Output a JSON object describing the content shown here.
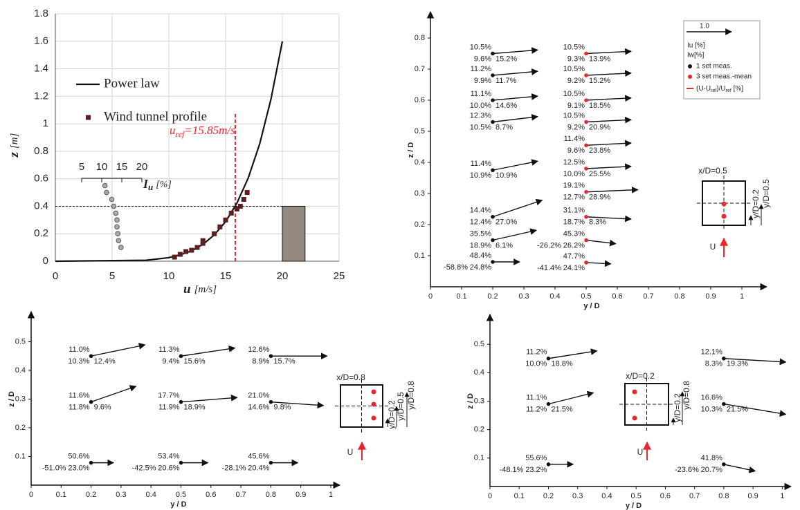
{
  "chart_data": [
    {
      "type": "line",
      "xlabel": {
        "symbol": "u",
        "unit": "[m/s]"
      },
      "ylabel": {
        "symbol": "z",
        "unit": "[m]"
      },
      "xlim": [
        0,
        25
      ],
      "xticks": [
        0,
        5,
        10,
        15,
        20,
        25
      ],
      "ylim": [
        0,
        1.8
      ],
      "yticks": [
        0,
        0.2,
        0.4,
        0.6,
        0.8,
        1,
        1.2,
        1.4,
        1.6,
        1.8
      ],
      "grid": true,
      "series": [
        {
          "name": "Power law",
          "color": "#111111",
          "kind": "line",
          "x": [
            0,
            8,
            10,
            11,
            12,
            13,
            14,
            15,
            16,
            17,
            18,
            19,
            20
          ],
          "y": [
            0,
            0.007,
            0.026,
            0.046,
            0.076,
            0.123,
            0.191,
            0.288,
            0.423,
            0.607,
            0.853,
            1.18,
            1.6
          ]
        },
        {
          "name": "Wind tunnel profile",
          "color": "#5b1f1f",
          "kind": "scatter",
          "x": [
            10.5,
            11,
            11.5,
            12,
            12.5,
            13,
            13,
            14,
            14.5,
            15,
            15.5,
            16,
            16.3,
            16.6,
            16.9
          ],
          "y": [
            0.03,
            0.05,
            0.07,
            0.08,
            0.1,
            0.15,
            0.13,
            0.2,
            0.25,
            0.3,
            0.35,
            0.38,
            0.4,
            0.45,
            0.5
          ]
        }
      ],
      "iu_profile": {
        "label": {
          "symbol": "I",
          "sub": "u",
          "unit": "[%]"
        },
        "ticks": [
          5,
          10,
          15,
          20
        ],
        "color": "#aaaaaa",
        "x": [
          10.8,
          11.2,
          12.5,
          13,
          13.5,
          13.8,
          13.8,
          14,
          14.2,
          14.8
        ],
        "y": [
          0.55,
          0.5,
          0.45,
          0.4,
          0.35,
          0.3,
          0.25,
          0.2,
          0.15,
          0.1
        ]
      },
      "reference": {
        "symbol": "u",
        "sub": "ref",
        "text": "=15.85m/s",
        "value": 15.85,
        "height": 0.4,
        "color": "#e8262b"
      },
      "building": {
        "x": [
          20,
          22
        ],
        "height": 0.4,
        "color": "#948a80"
      }
    },
    {
      "type": "vector",
      "xlabel": "y / D",
      "ylabel": "z / D",
      "xlim": [
        0,
        1.08
      ],
      "xticks": [
        0,
        0.1,
        0.2,
        0.3,
        0.4,
        0.5,
        0.6,
        0.7,
        0.8,
        0.9,
        1
      ],
      "ylim": [
        0,
        0.88
      ],
      "yticks": [
        0.1,
        0.2,
        0.3,
        0.4,
        0.5,
        0.6,
        0.7,
        0.8
      ],
      "colors": {
        "iu": "#222222",
        "iw": "#e8262b",
        "sets": [
          "#111111",
          "#e8262b"
        ]
      },
      "legend": {
        "ref": "1.0",
        "iu": "Iu [%]",
        "iw": "Iw[%]",
        "sets": [
          "1 set meas.",
          "3 set meas.-mean"
        ],
        "deviation": [
          "(U-U",
          "ref",
          ")/U",
          "ref",
          " [%]"
        ]
      },
      "inset": [
        "x/D=0.5",
        "y/D=0.2",
        "y/D=0.5",
        "U"
      ],
      "vectors": [
        {
          "y": 0.2,
          "z": 0.75,
          "u": 1.0,
          "w": 0.08,
          "iu": "10.5%",
          "iw": "9.6%",
          "dev": "15.2%",
          "set": 0
        },
        {
          "y": 0.2,
          "z": 0.68,
          "u": 1.0,
          "w": 0.09,
          "iu": "11.2%",
          "iw": "9.9%",
          "dev": "11.7%",
          "set": 0
        },
        {
          "y": 0.2,
          "z": 0.6,
          "u": 1.0,
          "w": 0.09,
          "iu": "11.1%",
          "iw": "10.0%",
          "dev": "14.6%",
          "set": 0
        },
        {
          "y": 0.2,
          "z": 0.53,
          "u": 1.0,
          "w": 0.12,
          "iu": "12.3%",
          "iw": "10.5%",
          "dev": "8.7%",
          "set": 0
        },
        {
          "y": 0.2,
          "z": 0.375,
          "u": 1.0,
          "w": 0.2,
          "iu": "11.4%",
          "iw": "10.9%",
          "dev": "10.9%",
          "set": 0
        },
        {
          "y": 0.2,
          "z": 0.225,
          "u": 1.1,
          "w": 0.37,
          "iu": "14.4%",
          "iw": "12.4%",
          "dev": "27.0%",
          "set": 0
        },
        {
          "y": 0.2,
          "z": 0.15,
          "u": 0.97,
          "w": 0.22,
          "iu": "35.5%",
          "iw": "18.9%",
          "dev": "6.1%",
          "set": 0
        },
        {
          "y": 0.2,
          "z": 0.08,
          "u": 0.6,
          "w": 0,
          "iu": "48.4%",
          "iw": "24.8%",
          "dev": "-58.8%",
          "set": 0
        },
        {
          "y": 0.5,
          "z": 0.75,
          "u": 1.0,
          "w": 0.05,
          "iu": "10.5%",
          "iw": "9.3%",
          "dev": "13.9%",
          "set": 1
        },
        {
          "y": 0.5,
          "z": 0.68,
          "u": 1.0,
          "w": 0.05,
          "iu": "10.5%",
          "iw": "9.2%",
          "dev": "15.2%",
          "set": 1
        },
        {
          "y": 0.5,
          "z": 0.6,
          "u": 1.0,
          "w": 0.05,
          "iu": "10.5%",
          "iw": "9.1%",
          "dev": "18.5%",
          "set": 1
        },
        {
          "y": 0.5,
          "z": 0.53,
          "u": 1.0,
          "w": 0.05,
          "iu": "10.5%",
          "iw": "9.2%",
          "dev": "20.9%",
          "set": 1
        },
        {
          "y": 0.5,
          "z": 0.455,
          "u": 1.0,
          "w": 0.05,
          "iu": "11.4%",
          "iw": "9.6%",
          "dev": "23.8%",
          "set": 1
        },
        {
          "y": 0.5,
          "z": 0.38,
          "u": 1.0,
          "w": 0.05,
          "iu": "12.5%",
          "iw": "10.0%",
          "dev": "25.5%",
          "set": 1
        },
        {
          "y": 0.5,
          "z": 0.305,
          "u": 1.15,
          "w": 0.05,
          "iu": "19.1%",
          "iw": "12.7%",
          "dev": "28.9%",
          "set": 1
        },
        {
          "y": 0.5,
          "z": 0.225,
          "u": 1.0,
          "w": -0.05,
          "iu": "31.1%",
          "iw": "18.7%",
          "dev": "8.3%",
          "set": 1
        },
        {
          "y": 0.5,
          "z": 0.15,
          "u": 0.66,
          "w": -0.08,
          "iu": "45.3%",
          "iw": "26.2%",
          "dev": "-26.2%",
          "set": 1
        },
        {
          "y": 0.5,
          "z": 0.078,
          "u": 0.55,
          "w": -0.03,
          "iu": "47.7%",
          "iw": "24.1%",
          "dev": "-41.4%",
          "set": 1
        }
      ]
    },
    {
      "type": "vector",
      "xlabel": "y / D",
      "ylabel": "z / D",
      "xlim": [
        0,
        1.03
      ],
      "xticks": [
        0,
        0.1,
        0.2,
        0.3,
        0.4,
        0.5,
        0.6,
        0.7,
        0.8,
        0.9,
        1
      ],
      "ylim": [
        0,
        0.6
      ],
      "yticks": [
        0.1,
        0.2,
        0.3,
        0.4,
        0.5
      ],
      "colors": {
        "iu": "#222222",
        "iw": "#e8262b",
        "sets": [
          "#111111",
          "#e8262b"
        ]
      },
      "inset": [
        "x/D=0.8",
        "y/D=0.2",
        "y/D=0.5",
        "y/D=0.8",
        "U"
      ],
      "vectors": [
        {
          "y": 0.2,
          "z": 0.45,
          "u": 1.2,
          "w": 0.25,
          "iu": "11.0%",
          "iw": "10.3%",
          "dev": "12.4%",
          "set": 0
        },
        {
          "y": 0.5,
          "z": 0.45,
          "u": 1.2,
          "w": 0.18,
          "iu": "11.3%",
          "iw": "9.4%",
          "dev": "15.6%",
          "set": 0
        },
        {
          "y": 0.8,
          "z": 0.45,
          "u": 1.25,
          "w": 0,
          "iu": "12.6%",
          "iw": "8.9%",
          "dev": "15.7%",
          "set": 0
        },
        {
          "y": 0.2,
          "z": 0.29,
          "u": 1.0,
          "w": 0.35,
          "iu": "11.6%",
          "iw": "11.8%",
          "dev": "9.6%",
          "set": 0
        },
        {
          "y": 0.5,
          "z": 0.29,
          "u": 1.25,
          "w": 0.1,
          "iu": "17.7%",
          "iw": "11.9%",
          "dev": "18.9%",
          "set": 0
        },
        {
          "y": 0.8,
          "z": 0.29,
          "u": 1.17,
          "w": -0.08,
          "iu": "21.0%",
          "iw": "14.6%",
          "dev": "9.8%",
          "set": 0
        },
        {
          "y": 0.2,
          "z": 0.078,
          "u": 0.5,
          "w": 0,
          "iu": "50.6%",
          "iw": "23.0%",
          "dev": "-51.0%",
          "set": 0
        },
        {
          "y": 0.5,
          "z": 0.078,
          "u": 0.6,
          "w": 0,
          "iu": "53.4%",
          "iw": "20.6%",
          "dev": "-42.5%",
          "set": 0
        },
        {
          "y": 0.8,
          "z": 0.078,
          "u": 0.6,
          "w": 0,
          "iu": "45.6%",
          "iw": "20.4%",
          "dev": "-28.1%",
          "set": 0
        }
      ]
    },
    {
      "type": "vector",
      "xlabel": "y / D",
      "ylabel": "z / D",
      "xlim": [
        0,
        1.03
      ],
      "xticks": [
        0,
        0.1,
        0.2,
        0.3,
        0.4,
        0.5,
        0.6,
        0.7,
        0.8,
        0.9,
        1
      ],
      "ylim": [
        0,
        0.6
      ],
      "yticks": [
        0.1,
        0.2,
        0.3,
        0.4,
        0.5
      ],
      "colors": {
        "iu": "#222222",
        "iw": "#e8262b",
        "sets": [
          "#111111",
          "#e8262b"
        ]
      },
      "inset": [
        "x/D=0.2",
        "y/D=0.2",
        "y/D=0.8",
        "U"
      ],
      "vectors": [
        {
          "y": 0.2,
          "z": 0.45,
          "u": 1.08,
          "w": 0.17,
          "iu": "11.2%",
          "iw": "10.0%",
          "dev": "18.8%",
          "set": 0
        },
        {
          "y": 0.8,
          "z": 0.45,
          "u": 1.38,
          "w": -0.08,
          "iu": "12.1%",
          "iw": "8.3%",
          "dev": "19.3%",
          "set": 0
        },
        {
          "y": 0.2,
          "z": 0.29,
          "u": 1.0,
          "w": 0.25,
          "iu": "11.1%",
          "iw": "11.2%",
          "dev": "21.5%",
          "set": 0
        },
        {
          "y": 0.8,
          "z": 0.29,
          "u": 1.38,
          "w": -0.23,
          "iu": "16.6%",
          "iw": "10.3%",
          "dev": "21.5%",
          "set": 0
        },
        {
          "y": 0.2,
          "z": 0.078,
          "u": 0.55,
          "w": 0,
          "iu": "55.6%",
          "iw": "23.2%",
          "dev": "-48.1%",
          "set": 0
        },
        {
          "y": 0.8,
          "z": 0.078,
          "u": 0.7,
          "w": -0.15,
          "iu": "41.8%",
          "iw": "20.7%",
          "dev": "-23.6%",
          "set": 0
        }
      ]
    }
  ]
}
